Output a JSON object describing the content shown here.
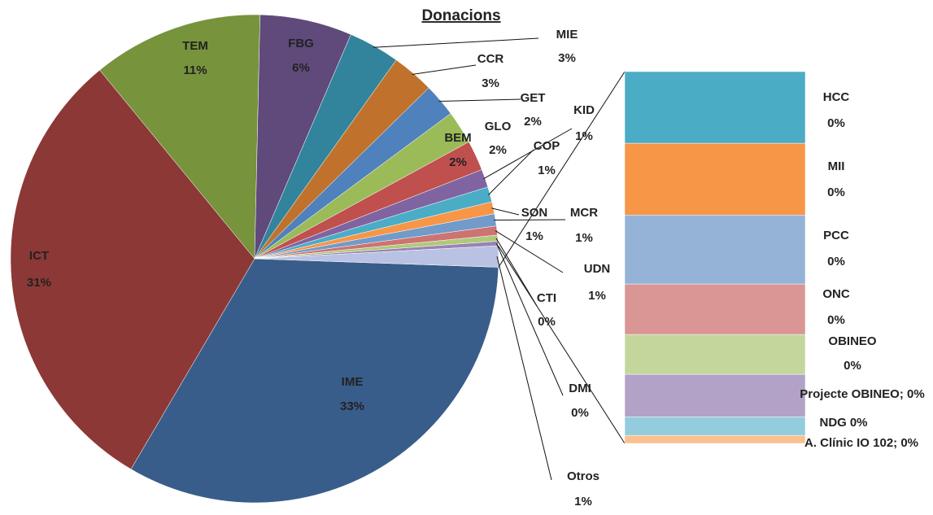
{
  "chart_data": {
    "type": "bar-of-pie",
    "title": "Donacions",
    "categories": [
      "IME",
      "ICT",
      "TEM",
      "FBG",
      "MIE",
      "CCR",
      "GET",
      "GLO",
      "BEM",
      "KID",
      "COP",
      "SON",
      "MCR",
      "UDN",
      "CTI",
      "DMI",
      "Otros"
    ],
    "values": [
      32.9,
      30.6,
      11.3,
      6.1,
      3.4,
      2.8,
      2.2,
      2.2,
      2.0,
      1.2,
      1.0,
      0.8,
      0.8,
      0.6,
      0.4,
      0.3,
      1.4
    ],
    "value_labels": [
      "33%",
      "31%",
      "11%",
      "6%",
      "3%",
      "3%",
      "2%",
      "2%",
      "2%",
      "1%",
      "1%",
      "1%",
      "1%",
      "1%",
      "0%",
      "0%",
      "1%"
    ],
    "colors": [
      "#385d8a",
      "#8c3836",
      "#77933c",
      "#5f4a7b",
      "#31849b",
      "#c0722d",
      "#4f81bd",
      "#9bbb59",
      "#c0504d",
      "#8064a2",
      "#4bacc6",
      "#f79646",
      "#729aca",
      "#cd7371",
      "#afc97a",
      "#9983b5",
      "#b9c2e2"
    ],
    "bar": {
      "categories": [
        "HCC",
        "MII",
        "PCC",
        "ONC",
        "OBINEO",
        "Projecte OBINEO",
        "NDG",
        "A. Clínic IO 102"
      ],
      "values": [
        0.27,
        0.27,
        0.26,
        0.19,
        0.15,
        0.16,
        0.07,
        0.03
      ],
      "value_labels": [
        "0%",
        "0%",
        "0%",
        "0%",
        "0%",
        "0%",
        "0%",
        "0%"
      ],
      "separator": "; ",
      "colors": [
        "#4bacc6",
        "#f79646",
        "#95b3d7",
        "#d99694",
        "#c3d69b",
        "#b3a2c7",
        "#93cddd",
        "#fac090"
      ]
    }
  }
}
